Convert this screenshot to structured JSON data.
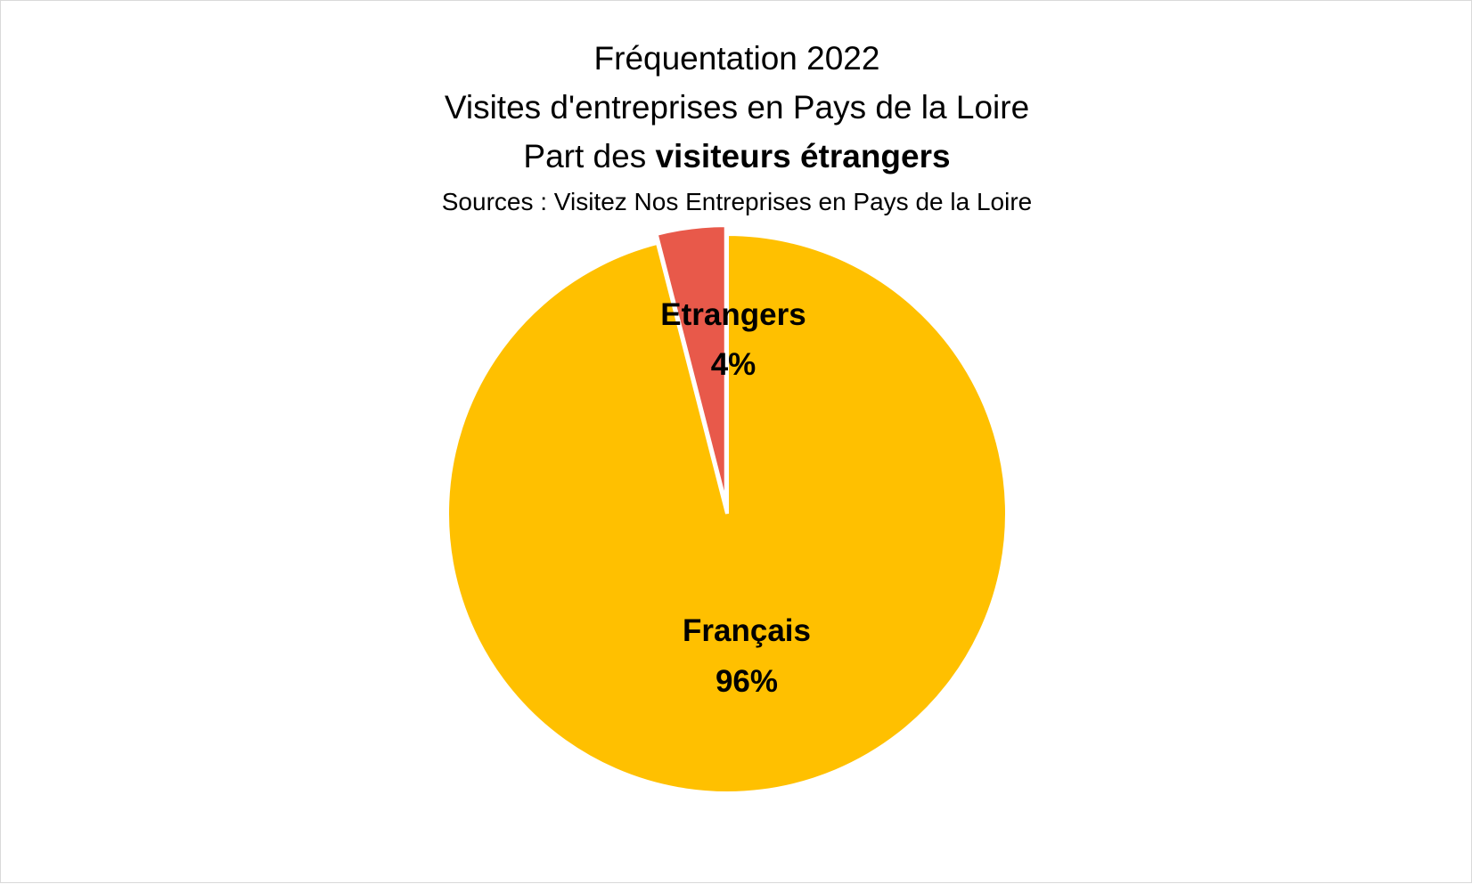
{
  "chart_data": {
    "type": "pie",
    "title_lines": [
      "Fréquentation 2022",
      "Visites d'entreprises en Pays de la Loire"
    ],
    "title_line_3": {
      "prefix": "Part des ",
      "bold": "visiteurs étrangers"
    },
    "subtitle": "Sources : Visitez Nos Entreprises en Pays de la Loire",
    "slices": [
      {
        "label": "Etrangers",
        "value": 4,
        "value_label": "4%",
        "color": "#E8594A",
        "exploded": true
      },
      {
        "label": "Français",
        "value": 96,
        "value_label": "96%",
        "color": "#FFC000",
        "exploded": false
      }
    ],
    "start_angle_deg": 0,
    "direction": "counterclockwise",
    "legend": "none",
    "slice_border_color": "#FFFFFF"
  }
}
